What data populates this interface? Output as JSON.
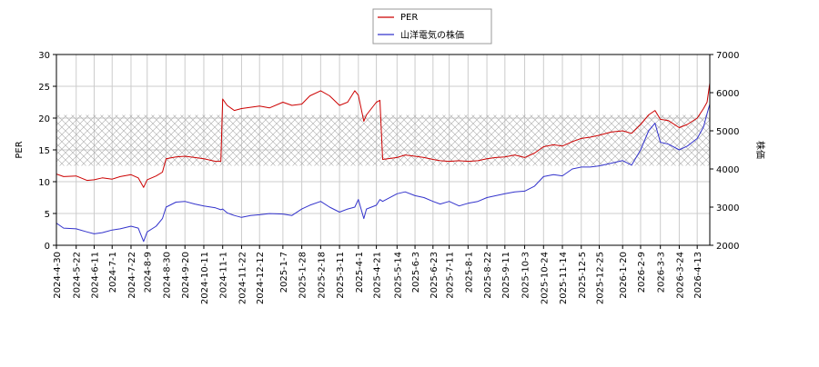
{
  "chart_data": {
    "type": "line",
    "title": "",
    "xlabel": "",
    "ylabel": "PER",
    "y2label": "株価",
    "ylim": [
      0,
      30
    ],
    "y2lim": [
      2000,
      7000
    ],
    "yticks": [
      0,
      5,
      10,
      15,
      20,
      25,
      30
    ],
    "y2ticks": [
      2000,
      3000,
      4000,
      5000,
      6000,
      7000
    ],
    "x_range": [
      "2024-04-30",
      "2026-04-27"
    ],
    "xticks": [
      "2024-4-30",
      "2024-5-22",
      "2024-6-11",
      "2024-7-1",
      "2024-7-22",
      "2024-8-9",
      "2024-8-30",
      "2024-9-20",
      "2024-10-11",
      "2024-11-1",
      "2024-11-22",
      "2024-12-12",
      "2025-1-7",
      "2025-1-28",
      "2025-2-18",
      "2025-3-11",
      "2025-4-1",
      "2025-4-21",
      "2025-5-14",
      "2025-6-3",
      "2025-6-23",
      "2025-7-11",
      "2025-8-1",
      "2025-8-22",
      "2025-9-11",
      "2025-10-3",
      "2025-10-24",
      "2025-11-14",
      "2025-12-5",
      "2025-12-25",
      "2026-1-20",
      "2026-2-9",
      "2026-3-3",
      "2026-3-24",
      "2026-4-13"
    ],
    "grid": true,
    "legend_position": "top-center",
    "band": {
      "axis": "y",
      "range": [
        12.5,
        20.5
      ],
      "style": "crosshatch"
    },
    "series": [
      {
        "name": "PER",
        "color": "#cc0000",
        "axis": "left",
        "x": [
          "2024-04-30",
          "2024-05-08",
          "2024-05-22",
          "2024-06-03",
          "2024-06-11",
          "2024-06-20",
          "2024-07-01",
          "2024-07-10",
          "2024-07-22",
          "2024-07-30",
          "2024-08-05",
          "2024-08-09",
          "2024-08-19",
          "2024-08-26",
          "2024-08-30",
          "2024-09-10",
          "2024-09-20",
          "2024-10-01",
          "2024-10-11",
          "2024-10-24",
          "2024-10-30",
          "2024-11-01",
          "2024-11-06",
          "2024-11-14",
          "2024-11-22",
          "2024-12-02",
          "2024-12-12",
          "2024-12-23",
          "2025-01-07",
          "2025-01-17",
          "2025-01-28",
          "2025-02-06",
          "2025-02-18",
          "2025-02-28",
          "2025-03-11",
          "2025-03-20",
          "2025-03-28",
          "2025-04-01",
          "2025-04-07",
          "2025-04-10",
          "2025-04-21",
          "2025-04-25",
          "2025-04-28",
          "2025-05-14",
          "2025-05-23",
          "2025-06-03",
          "2025-06-13",
          "2025-06-23",
          "2025-07-01",
          "2025-07-11",
          "2025-07-22",
          "2025-08-01",
          "2025-08-12",
          "2025-08-22",
          "2025-09-01",
          "2025-09-11",
          "2025-09-22",
          "2025-10-03",
          "2025-10-14",
          "2025-10-24",
          "2025-11-04",
          "2025-11-14",
          "2025-11-25",
          "2025-12-05",
          "2025-12-15",
          "2025-12-25",
          "2026-01-07",
          "2026-01-20",
          "2026-01-30",
          "2026-02-09",
          "2026-02-18",
          "2026-02-25",
          "2026-03-03",
          "2026-03-12",
          "2026-03-24",
          "2026-04-02",
          "2026-04-13",
          "2026-04-20",
          "2026-04-24",
          "2026-04-27"
        ],
        "values": [
          11.2,
          10.8,
          10.9,
          10.2,
          10.3,
          10.6,
          10.4,
          10.8,
          11.1,
          10.6,
          9.1,
          10.3,
          10.9,
          11.5,
          13.6,
          13.9,
          14.0,
          13.8,
          13.6,
          13.2,
          13.2,
          23.0,
          22.0,
          21.2,
          21.5,
          21.7,
          21.9,
          21.6,
          22.5,
          22.0,
          22.2,
          23.5,
          24.3,
          23.5,
          22.0,
          22.5,
          24.3,
          23.6,
          19.5,
          20.5,
          22.5,
          22.8,
          13.5,
          13.8,
          14.2,
          14.0,
          13.8,
          13.5,
          13.3,
          13.2,
          13.3,
          13.2,
          13.3,
          13.6,
          13.8,
          13.9,
          14.2,
          13.8,
          14.5,
          15.5,
          15.8,
          15.6,
          16.3,
          16.8,
          17.0,
          17.3,
          17.8,
          18.0,
          17.6,
          19.0,
          20.5,
          21.2,
          19.8,
          19.6,
          18.5,
          19.0,
          20.0,
          21.5,
          22.5,
          25.5
        ]
      },
      {
        "name": "山洋電気の株価",
        "color": "#3333cc",
        "axis": "right",
        "x": [
          "2024-04-30",
          "2024-05-08",
          "2024-05-22",
          "2024-06-03",
          "2024-06-11",
          "2024-06-20",
          "2024-07-01",
          "2024-07-10",
          "2024-07-22",
          "2024-07-30",
          "2024-08-05",
          "2024-08-09",
          "2024-08-19",
          "2024-08-26",
          "2024-08-30",
          "2024-09-10",
          "2024-09-20",
          "2024-10-01",
          "2024-10-11",
          "2024-10-24",
          "2024-10-30",
          "2024-11-01",
          "2024-11-06",
          "2024-11-14",
          "2024-11-22",
          "2024-12-02",
          "2024-12-12",
          "2024-12-23",
          "2025-01-07",
          "2025-01-17",
          "2025-01-28",
          "2025-02-06",
          "2025-02-18",
          "2025-02-28",
          "2025-03-11",
          "2025-03-20",
          "2025-03-28",
          "2025-04-01",
          "2025-04-07",
          "2025-04-10",
          "2025-04-21",
          "2025-04-25",
          "2025-04-28",
          "2025-05-14",
          "2025-05-23",
          "2025-06-03",
          "2025-06-13",
          "2025-06-23",
          "2025-07-01",
          "2025-07-11",
          "2025-07-22",
          "2025-08-01",
          "2025-08-12",
          "2025-08-22",
          "2025-09-01",
          "2025-09-11",
          "2025-09-22",
          "2025-10-03",
          "2025-10-14",
          "2025-10-24",
          "2025-11-04",
          "2025-11-14",
          "2025-11-25",
          "2025-12-05",
          "2025-12-15",
          "2025-12-25",
          "2026-01-07",
          "2026-01-20",
          "2026-01-30",
          "2026-02-09",
          "2026-02-18",
          "2026-02-25",
          "2026-03-03",
          "2026-03-12",
          "2026-03-24",
          "2026-04-02",
          "2026-04-13",
          "2026-04-20",
          "2026-04-24",
          "2026-04-27"
        ],
        "values": [
          2580,
          2450,
          2430,
          2350,
          2300,
          2330,
          2400,
          2430,
          2500,
          2450,
          2100,
          2350,
          2500,
          2700,
          3000,
          3130,
          3150,
          3080,
          3030,
          2980,
          2930,
          2950,
          2850,
          2780,
          2730,
          2780,
          2800,
          2830,
          2820,
          2780,
          2950,
          3050,
          3150,
          3000,
          2870,
          2950,
          3000,
          3200,
          2700,
          2950,
          3050,
          3200,
          3150,
          3350,
          3400,
          3300,
          3250,
          3150,
          3080,
          3150,
          3030,
          3100,
          3150,
          3250,
          3300,
          3350,
          3400,
          3420,
          3550,
          3800,
          3850,
          3820,
          4000,
          4050,
          4050,
          4080,
          4150,
          4220,
          4100,
          4500,
          5000,
          5200,
          4700,
          4650,
          4500,
          4600,
          4800,
          5100,
          5450,
          5700
        ]
      }
    ]
  }
}
